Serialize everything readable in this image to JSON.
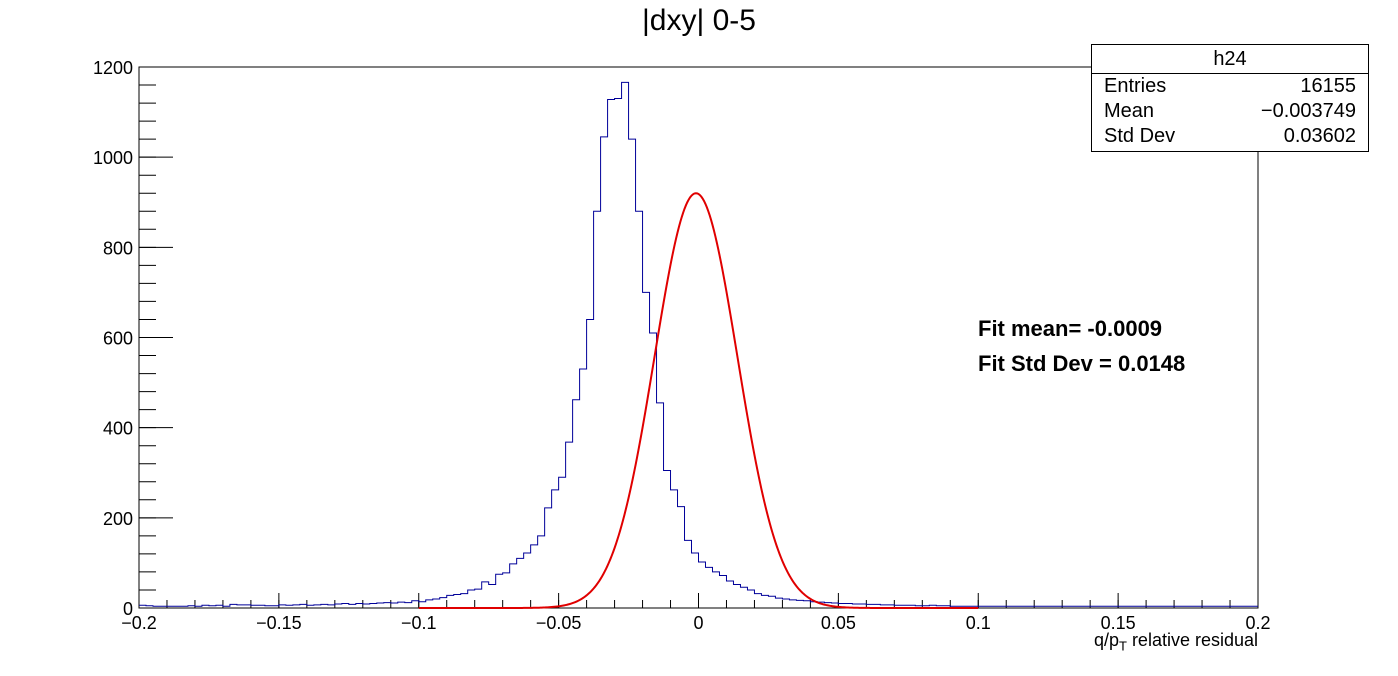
{
  "title": "|dxy| 0-5",
  "stats": {
    "name": "h24",
    "rows": [
      {
        "label": "Entries",
        "value": "16155"
      },
      {
        "label": "Mean",
        "value": "−0.003749"
      },
      {
        "label": "Std Dev",
        "value": "0.03602"
      }
    ]
  },
  "fit_text": {
    "mean": "Fit mean= -0.0009",
    "stddev": "Fit Std Dev = 0.0148"
  },
  "xtitle": {
    "pre": "q/p",
    "sub": "T",
    "post": " relative residual"
  },
  "colors": {
    "histogram": "#000099",
    "fit": "#e00000"
  },
  "chart_data": {
    "type": "line",
    "xlim": [
      -0.2,
      0.2
    ],
    "ylim": [
      0,
      1200
    ],
    "x_ticks": [
      {
        "value": -0.2,
        "label": "−0.2"
      },
      {
        "value": -0.15,
        "label": "−0.15"
      },
      {
        "value": -0.1,
        "label": "−0.1"
      },
      {
        "value": -0.05,
        "label": "−0.05"
      },
      {
        "value": 0,
        "label": "0"
      },
      {
        "value": 0.05,
        "label": "0.05"
      },
      {
        "value": 0.1,
        "label": "0.1"
      },
      {
        "value": 0.15,
        "label": "0.15"
      },
      {
        "value": 0.2,
        "label": "0.2"
      }
    ],
    "y_ticks": [
      {
        "value": 0,
        "label": "0"
      },
      {
        "value": 200,
        "label": "200"
      },
      {
        "value": 400,
        "label": "400"
      },
      {
        "value": 600,
        "label": "600"
      },
      {
        "value": 800,
        "label": "800"
      },
      {
        "value": 1000,
        "label": "1000"
      },
      {
        "value": 1200,
        "label": "1200"
      }
    ],
    "histogram": {
      "bin_low": -0.2,
      "bin_width": 0.0025,
      "counts": [
        6,
        5,
        4,
        4,
        4,
        4,
        4,
        5,
        4,
        6,
        5,
        6,
        4,
        8,
        7,
        7,
        6,
        6,
        5,
        5,
        7,
        6,
        7,
        8,
        6,
        7,
        8,
        7,
        9,
        10,
        8,
        10,
        9,
        10,
        11,
        12,
        11,
        13,
        12,
        16,
        14,
        18,
        20,
        23,
        28,
        30,
        32,
        40,
        42,
        58,
        52,
        75,
        78,
        98,
        110,
        122,
        140,
        160,
        222,
        262,
        290,
        368,
        462,
        530,
        640,
        880,
        1045,
        1128,
        1130,
        1166,
        1040,
        880,
        700,
        610,
        455,
        305,
        262,
        225,
        150,
        122,
        102,
        90,
        80,
        72,
        60,
        52,
        46,
        40,
        32,
        28,
        26,
        22,
        20,
        18,
        17,
        16,
        14,
        13,
        12,
        11,
        10,
        10,
        9,
        9,
        8,
        8,
        7,
        7,
        6,
        6,
        6,
        5,
        5,
        6,
        5,
        5,
        4,
        4,
        4,
        4,
        4,
        4,
        4,
        4,
        4,
        4,
        4,
        4,
        4,
        4,
        4,
        4,
        4,
        4,
        4,
        4,
        4,
        4,
        4,
        4,
        4,
        4,
        4,
        4,
        4,
        4,
        4,
        4,
        4,
        4,
        4,
        4,
        4,
        4,
        4,
        4,
        4,
        4,
        4,
        4
      ]
    },
    "fit": {
      "function": "gaussian",
      "amplitude": 920,
      "mean": -0.0009,
      "sigma": 0.0148
    }
  }
}
